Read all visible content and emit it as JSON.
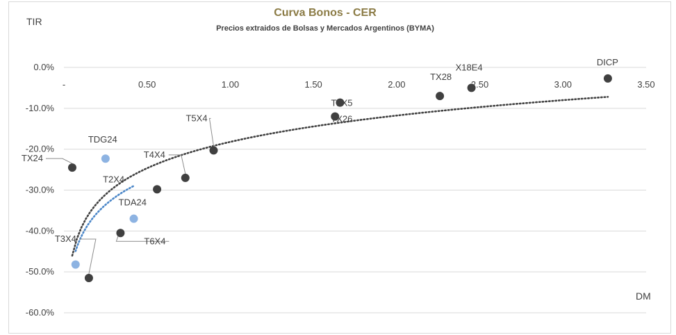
{
  "chart_data": {
    "type": "scatter",
    "title": "Curva Bonos - CER",
    "subtitle": "Precios extraidos de Bolsas y Mercados Argentinos (BYMA)",
    "ylabel": "TIR",
    "xlabel": "DM",
    "xlim": [
      0,
      3.5
    ],
    "ylim": [
      -60,
      0
    ],
    "x_ticks": [
      "-",
      "0.50",
      "1.00",
      "1.50",
      "2.00",
      "2.50",
      "3.00",
      "3.50"
    ],
    "y_ticks": [
      "0.0%",
      "-10.0%",
      "-20.0%",
      "-30.0%",
      "-40.0%",
      "-50.0%",
      "-60.0%"
    ],
    "grid": "horizontal",
    "colors": {
      "dark": "#404040",
      "light": "#8db3e2",
      "trend_dark": "#404040",
      "trend_light": "#4a86c8"
    },
    "series": [
      {
        "color_key": "dark",
        "points": [
          {
            "label": "TX24",
            "x": 0.05,
            "y": -24.5
          },
          {
            "label": "T3X4",
            "x": 0.15,
            "y": -51.5
          },
          {
            "label": "T6X4",
            "x": 0.34,
            "y": -40.5
          },
          {
            "label": "T2X4",
            "x": 0.56,
            "y": -29.8
          },
          {
            "label": "T4X4",
            "x": 0.73,
            "y": -27.0
          },
          {
            "label": "T5X4",
            "x": 0.9,
            "y": -20.3
          },
          {
            "label": "T2X5",
            "x": 1.66,
            "y": -8.6
          },
          {
            "label": "TX26",
            "x": 1.63,
            "y": -12.0
          },
          {
            "label": "TX28",
            "x": 2.26,
            "y": -7.0
          },
          {
            "label": "X18E4",
            "x": 2.45,
            "y": -5.0
          },
          {
            "label": "DICP",
            "x": 3.27,
            "y": -2.7
          }
        ],
        "trendline": {
          "type": "logarithmic",
          "x_range": [
            0.05,
            3.27
          ],
          "style": "dotted"
        }
      },
      {
        "color_key": "light",
        "points": [
          {
            "label": "TDG24",
            "x": 0.25,
            "y": -22.3
          },
          {
            "label": "TDA24",
            "x": 0.42,
            "y": -37.0
          },
          {
            "label": "",
            "x": 0.07,
            "y": -48.2
          }
        ],
        "trendline": {
          "type": "logarithmic",
          "x_range": [
            0.07,
            0.42
          ],
          "style": "dotted"
        }
      }
    ]
  }
}
